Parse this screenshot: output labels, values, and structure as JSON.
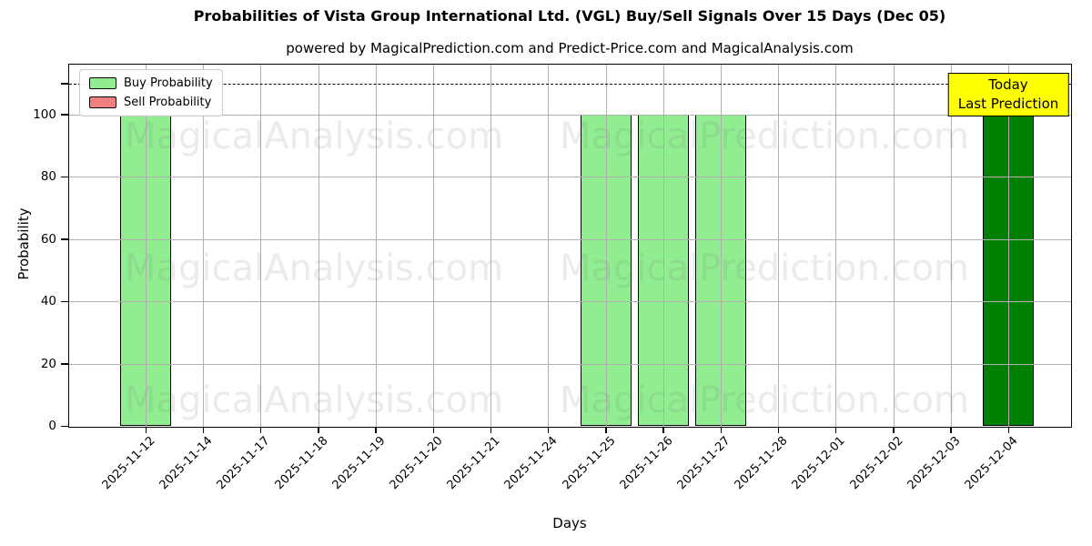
{
  "figure": {
    "title": "Probabilities of Vista Group International Ltd. (VGL) Buy/Sell Signals Over 15 Days (Dec 05)",
    "subtitle": "powered by MagicalPrediction.com and Predict-Price.com and MagicalAnalysis.com"
  },
  "chart_data": {
    "type": "bar",
    "title": "Probabilities of Vista Group International Ltd. (VGL) Buy/Sell Signals Over 15 Days (Dec 05)",
    "xlabel": "Days",
    "ylabel": "Probability",
    "ylim": [
      0,
      116
    ],
    "yticks": [
      0,
      20,
      40,
      60,
      80,
      100
    ],
    "grid": "on",
    "dashed_hline": 110,
    "legend_position": "upper left",
    "categories": [
      "2025-11-12",
      "2025-11-14",
      "2025-11-17",
      "2025-11-18",
      "2025-11-19",
      "2025-11-20",
      "2025-11-21",
      "2025-11-24",
      "2025-11-25",
      "2025-11-26",
      "2025-11-27",
      "2025-11-28",
      "2025-12-01",
      "2025-12-02",
      "2025-12-03",
      "2025-12-04"
    ],
    "series": [
      {
        "name": "Buy Probability",
        "color": "#90ee90",
        "values": [
          100,
          0,
          0,
          0,
          0,
          0,
          0,
          0,
          100,
          100,
          100,
          0,
          0,
          0,
          0,
          100
        ]
      },
      {
        "name": "Sell Probability",
        "color": "#f08080",
        "values": [
          0,
          0,
          0,
          0,
          0,
          0,
          0,
          0,
          0,
          0,
          0,
          0,
          0,
          0,
          0,
          0
        ]
      }
    ],
    "today_bar": {
      "index": 15,
      "color": "#008000"
    },
    "annotation": {
      "line1": "Today",
      "line2": "Last Prediction",
      "bg_color": "#ffff00"
    },
    "watermark_left": "MagicalAnalysis.com",
    "watermark_right": "MagicalPrediction.com",
    "grid_color": "#b0b0b0"
  }
}
